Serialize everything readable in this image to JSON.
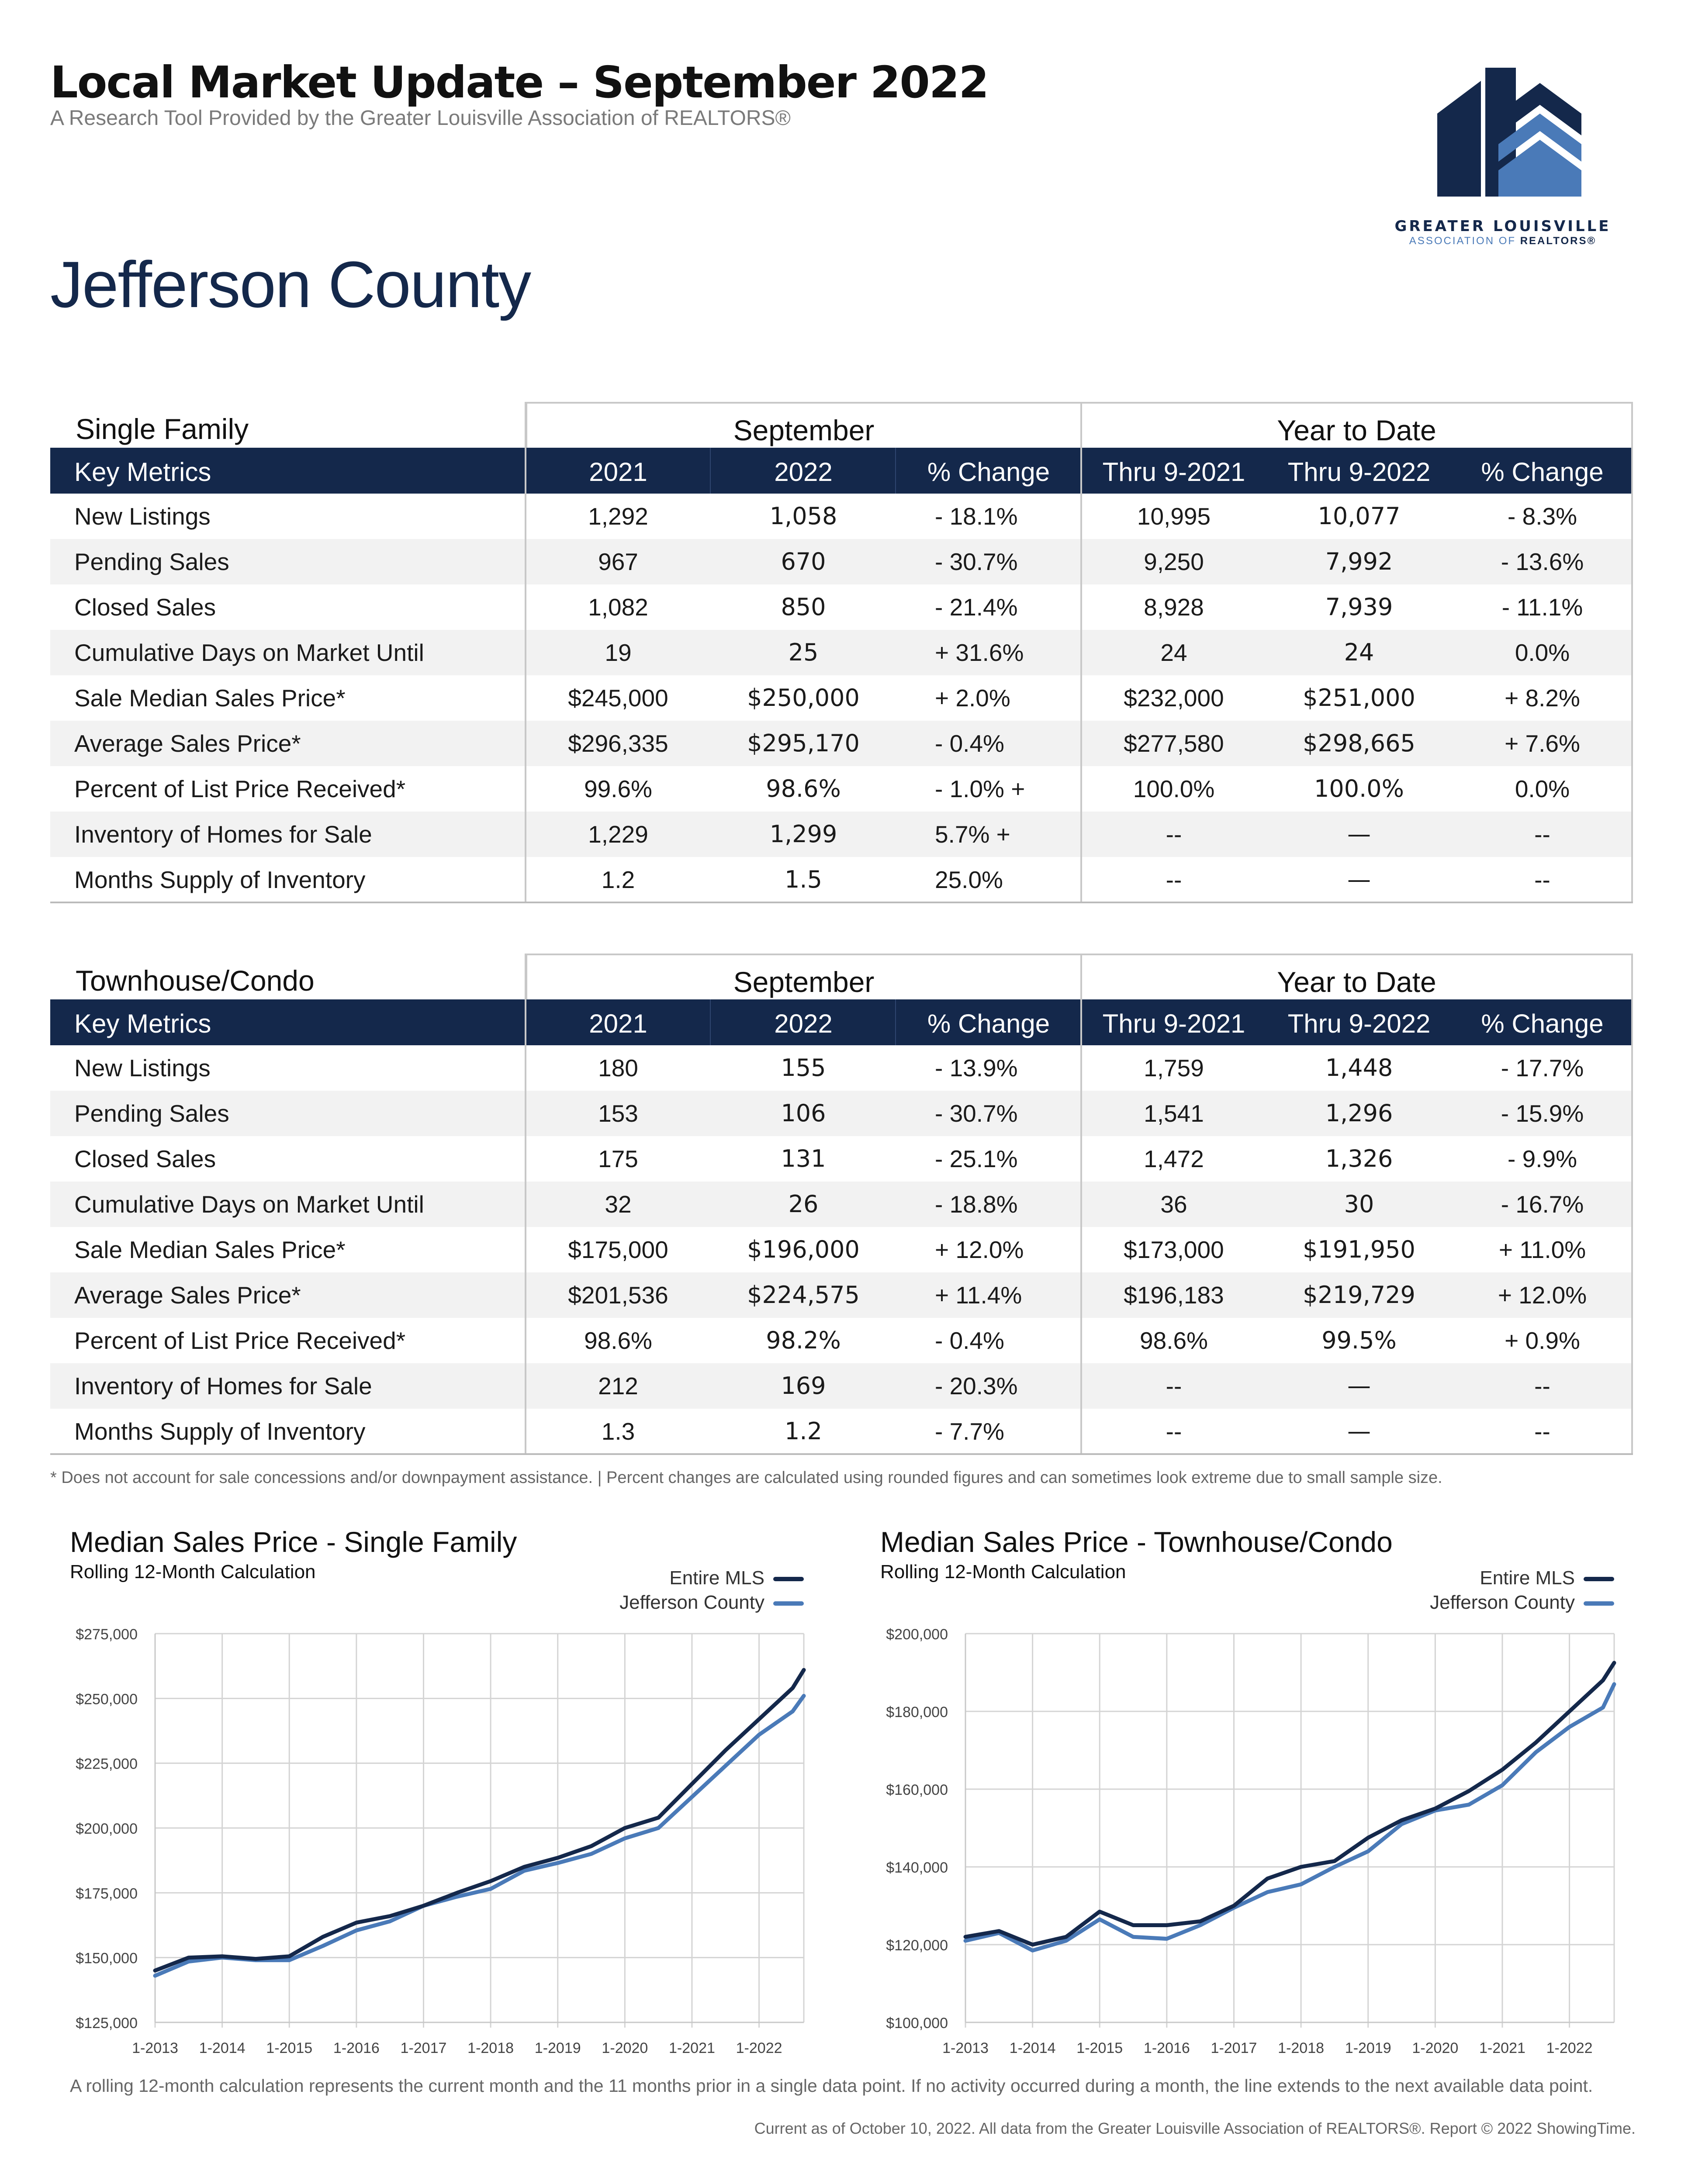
{
  "header": {
    "title": "Local Market Update – September 2022",
    "subtitle": "A Research Tool Provided by the Greater Louisville Association of REALTORS®",
    "logo_line1": "GREATER LOUISVILLE",
    "logo_line2_a": "ASSOCIATION OF ",
    "logo_line2_b": "REALTORS®"
  },
  "county": "Jefferson County",
  "colors": {
    "navy": "#14284b",
    "blue": "#4a7ab8",
    "grid": "#c8c8c8"
  },
  "tables": [
    {
      "section": "Single Family",
      "group_month": "September",
      "group_ytd": "Year to Date",
      "headers": [
        "Key Metrics",
        "2021",
        "2022",
        "% Change",
        "Thru 9-2021",
        "Thru 9-2022",
        "% Change"
      ],
      "rows": [
        [
          "New Listings",
          "1,292",
          "1,058",
          "-  18.1%",
          "10,995",
          "10,077",
          "- 8.3%"
        ],
        [
          "Pending Sales",
          "967",
          "670",
          "-  30.7%",
          "9,250",
          "7,992",
          "- 13.6%"
        ],
        [
          "Closed Sales",
          "1,082",
          "850",
          "-  21.4%",
          "8,928",
          "7,939",
          "- 11.1%"
        ],
        [
          "Cumulative   Days   on   Market   Until",
          "19",
          "25",
          "+  31.6%",
          "24",
          "24",
          "0.0%"
        ],
        [
          "Sale Median Sales Price*",
          "$245,000",
          "$250,000",
          "+ 2.0%",
          "$232,000",
          "$251,000",
          "+ 8.2%"
        ],
        [
          "Average Sales Price*",
          "$296,335",
          "$295,170",
          "- 0.4%",
          "$277,580",
          "$298,665",
          "+ 7.6%"
        ],
        [
          "Percent of List Price Received*",
          "99.6%",
          "98.6%",
          "- 1.0% +",
          "100.0%",
          "100.0%",
          "0.0%"
        ],
        [
          "Inventory of Homes for Sale",
          "1,229",
          "1,299",
          "5.7%     +",
          "--",
          "—",
          "--"
        ],
        [
          "Months Supply of Inventory",
          "1.2",
          "1.5",
          "25.0%",
          "--",
          "—",
          "--"
        ]
      ]
    },
    {
      "section": "Townhouse/Condo",
      "group_month": "September",
      "group_ytd": "Year to Date",
      "headers": [
        "Key Metrics",
        "2021",
        "2022",
        "% Change",
        "Thru 9-2021",
        "Thru 9-2022",
        "% Change"
      ],
      "rows": [
        [
          "New Listings",
          "180",
          "155",
          "-  13.9%",
          "1,759",
          "1,448",
          "-  17.7%"
        ],
        [
          "Pending Sales",
          "153",
          "106",
          "-  30.7%",
          "1,541",
          "1,296",
          "-  15.9%"
        ],
        [
          "Closed Sales",
          "175",
          "131",
          "-  25.1%",
          "1,472",
          "1,326",
          "- 9.9%"
        ],
        [
          "Cumulative   Days   on   Market   Until",
          "32",
          "26",
          "-  18.8%",
          "36",
          "30",
          "- 16.7%"
        ],
        [
          "Sale Median Sales Price*",
          "$175,000",
          "$196,000",
          "+  12.0%",
          "$173,000",
          "$191,950",
          "+ 11.0%"
        ],
        [
          "Average Sales Price*",
          "$201,536",
          "$224,575",
          "+  11.4%",
          "$196,183",
          "$219,729",
          "+ 12.0%"
        ],
        [
          "Percent of List Price Received*",
          "98.6%",
          "98.2%",
          "- 0.4%",
          "98.6%",
          "99.5%",
          "+ 0.9%"
        ],
        [
          "Inventory of Homes for Sale",
          "212",
          "169",
          "-  20.3%",
          "--",
          "—",
          "--"
        ],
        [
          "Months Supply of Inventory",
          "1.3",
          "1.2",
          "- 7.7%",
          "--",
          "—",
          "--"
        ]
      ]
    }
  ],
  "footnote": "* Does not account for sale concessions and/or downpayment assistance.  |  Percent changes are calculated using rounded figures and can sometimes look extreme due to small sample size.",
  "chart_data": [
    {
      "type": "line",
      "title": "Median Sales Price - Single Family",
      "subtitle": "Rolling 12-Month Calculation",
      "x_ticks": [
        "1-2013",
        "1-2014",
        "1-2015",
        "1-2016",
        "1-2017",
        "1-2018",
        "1-2019",
        "1-2020",
        "1-2021",
        "1-2022"
      ],
      "y_ticks": [
        "$125,000",
        "$150,000",
        "$175,000",
        "$200,000",
        "$225,000",
        "$250,000",
        "$275,000"
      ],
      "ylim": [
        125000,
        275000
      ],
      "x_range": [
        "1-2013",
        "9-2022"
      ],
      "legend_placement": "top-right",
      "series": [
        {
          "name": "Entire MLS",
          "color": "#14284b",
          "x": [
            "1-2013",
            "7-2013",
            "1-2014",
            "7-2014",
            "1-2015",
            "7-2015",
            "1-2016",
            "7-2016",
            "1-2017",
            "7-2017",
            "1-2018",
            "7-2018",
            "1-2019",
            "7-2019",
            "1-2020",
            "7-2020",
            "1-2021",
            "7-2021",
            "1-2022",
            "7-2022",
            "9-2022"
          ],
          "values": [
            145000,
            150000,
            150500,
            149500,
            150500,
            158000,
            163500,
            166000,
            170000,
            175000,
            179500,
            185000,
            188500,
            193000,
            200000,
            204000,
            217000,
            230000,
            242000,
            254000,
            261000
          ]
        },
        {
          "name": "Jefferson County",
          "color": "#4a7ab8",
          "x": [
            "1-2013",
            "7-2013",
            "1-2014",
            "7-2014",
            "1-2015",
            "7-2015",
            "1-2016",
            "7-2016",
            "1-2017",
            "7-2017",
            "1-2018",
            "7-2018",
            "1-2019",
            "7-2019",
            "1-2020",
            "7-2020",
            "1-2021",
            "7-2021",
            "1-2022",
            "7-2022",
            "9-2022"
          ],
          "values": [
            143000,
            148500,
            150000,
            149000,
            149000,
            154500,
            160500,
            164000,
            170000,
            173500,
            176500,
            183500,
            186500,
            190000,
            196000,
            200000,
            212000,
            224000,
            236000,
            245000,
            251000
          ]
        }
      ]
    },
    {
      "type": "line",
      "title": "Median Sales Price - Townhouse/Condo",
      "subtitle": "Rolling 12-Month Calculation",
      "x_ticks": [
        "1-2013",
        "1-2014",
        "1-2015",
        "1-2016",
        "1-2017",
        "1-2018",
        "1-2019",
        "1-2020",
        "1-2021",
        "1-2022"
      ],
      "y_ticks": [
        "$100,000",
        "$120,000",
        "$140,000",
        "$160,000",
        "$180,000",
        "$200,000"
      ],
      "ylim": [
        100000,
        200000
      ],
      "x_range": [
        "1-2013",
        "9-2022"
      ],
      "legend_placement": "top-right",
      "series": [
        {
          "name": "Entire MLS",
          "color": "#14284b",
          "x": [
            "1-2013",
            "7-2013",
            "1-2014",
            "7-2014",
            "1-2015",
            "7-2015",
            "1-2016",
            "7-2016",
            "1-2017",
            "7-2017",
            "1-2018",
            "7-2018",
            "1-2019",
            "7-2019",
            "1-2020",
            "7-2020",
            "1-2021",
            "7-2021",
            "1-2022",
            "7-2022",
            "9-2022"
          ],
          "values": [
            122000,
            123500,
            120000,
            122000,
            128500,
            125000,
            125000,
            126000,
            130000,
            137000,
            140000,
            141500,
            147500,
            152000,
            155000,
            159500,
            165000,
            172000,
            180000,
            188000,
            192500
          ]
        },
        {
          "name": "Jefferson County",
          "color": "#4a7ab8",
          "x": [
            "1-2013",
            "7-2013",
            "1-2014",
            "7-2014",
            "1-2015",
            "7-2015",
            "1-2016",
            "7-2016",
            "1-2017",
            "7-2017",
            "1-2018",
            "7-2018",
            "1-2019",
            "7-2019",
            "1-2020",
            "7-2020",
            "1-2021",
            "7-2021",
            "1-2022",
            "7-2022",
            "9-2022"
          ],
          "values": [
            121000,
            123000,
            118500,
            121000,
            126500,
            122000,
            121500,
            125000,
            129500,
            133500,
            135500,
            140000,
            144000,
            151000,
            154500,
            156000,
            161000,
            169500,
            176000,
            181000,
            187000
          ]
        }
      ]
    }
  ],
  "note_rolling": "A rolling 12-month calculation represents the current month and the 11 months prior in a single data point. If no activity occurred during a month, the line extends to the next available data point.",
  "note_current": "Current as of October 10, 2022. All data from the Greater Louisville Association of REALTORS®. Report © 2022 ShowingTime."
}
